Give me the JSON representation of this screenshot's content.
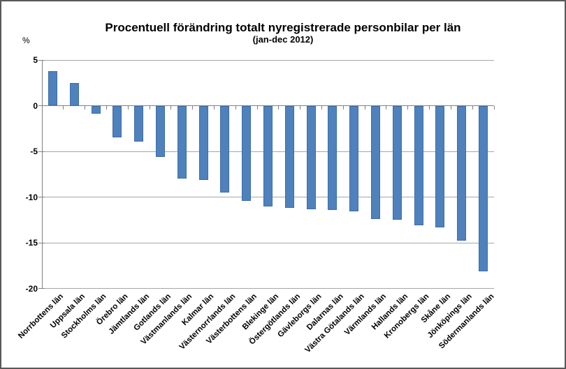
{
  "chart_data": {
    "type": "bar",
    "title": "Procentuell förändring totalt nyregistrerade personbilar per län",
    "subtitle": "(jan-dec 2012)",
    "ylabel": "%",
    "xlabel": "",
    "ylim": [
      -20,
      5
    ],
    "yticks": [
      5,
      0,
      -5,
      -10,
      -15,
      -20
    ],
    "grid": true,
    "legend": false,
    "categories": [
      "Norrbottens län",
      "Uppsala län",
      "Stockholms län",
      "Örebro län",
      "Jämtlands län",
      "Gotlands län",
      "Västmanlands län",
      "Kalmar län",
      "Västernorrlands län",
      "Västerbottens län",
      "Blekinge län",
      "Östergötlands län",
      "Gävleborgs län",
      "Dalarnas län",
      "Västra Götalands län",
      "Värmlands län",
      "Hallands län",
      "Kronobergs län",
      "Skåne län",
      "Jönköpings län",
      "Södermanlands län"
    ],
    "values": [
      3.8,
      2.5,
      -0.9,
      -3.5,
      -3.9,
      -5.6,
      -8.0,
      -8.1,
      -9.5,
      -10.4,
      -11.0,
      -11.2,
      -11.3,
      -11.4,
      -11.6,
      -12.4,
      -12.5,
      -13.1,
      -13.3,
      -14.8,
      -18.1
    ]
  },
  "colors": {
    "bar_fill": "#4f81bd",
    "bar_border": "#3d6ea5",
    "gridline": "#a6a6a6",
    "axis": "#808080",
    "text": "#000000",
    "frame_border": "#595959",
    "background": "#ffffff"
  }
}
